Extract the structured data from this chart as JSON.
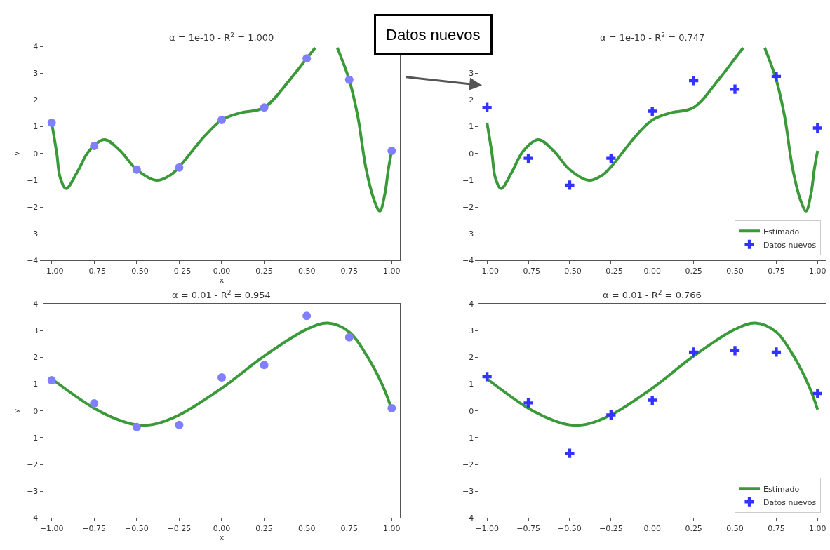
{
  "chart_data": [
    {
      "type": "line",
      "title": "α = 1e-10 - R$^{2}$ = 1.000",
      "xlabel": "x",
      "ylabel": "y",
      "xlim": [
        -1.05,
        1.05
      ],
      "ylim": [
        -4,
        4
      ],
      "xticks": [
        {
          "value": -1,
          "label": "−1.00"
        },
        {
          "value": -0.75,
          "label": "−0.75"
        },
        {
          "value": -0.5,
          "label": "−0.50"
        },
        {
          "value": -0.25,
          "label": "−0.25"
        },
        {
          "value": 0,
          "label": "0.00"
        },
        {
          "value": 0.25,
          "label": "0.25"
        },
        {
          "value": 0.5,
          "label": "0.50"
        },
        {
          "value": 0.75,
          "label": "0.75"
        },
        {
          "value": 1,
          "label": "1.00"
        }
      ],
      "yticks": [
        {
          "value": -4,
          "label": "−4"
        },
        {
          "value": -3,
          "label": "−3"
        },
        {
          "value": -2,
          "label": "−2"
        },
        {
          "value": -1,
          "label": "−1"
        },
        0,
        1,
        2,
        3,
        4
      ],
      "grid": false,
      "legend": false,
      "series": [
        {
          "color": "#3a9a3a",
          "marker": "none",
          "x": [
            -1,
            -0.97,
            -0.95,
            -0.915,
            -0.85,
            -0.78,
            -0.69,
            -0.6,
            -0.5,
            -0.383,
            -0.3,
            -0.25,
            -0.1,
            0,
            0.1,
            0.25,
            0.4,
            0.5,
            0.55,
            0.6,
            0.68,
            0.75,
            0.8,
            0.85,
            0.9,
            0.93,
            0.96,
            0.98,
            1
          ],
          "values": [
            1.15,
            0.0,
            -0.9,
            -1.31,
            -0.7,
            0.1,
            0.52,
            0.12,
            -0.6,
            -1.0,
            -0.8,
            -0.5,
            0.65,
            1.25,
            1.5,
            1.72,
            2.75,
            3.55,
            3.95,
            null,
            3.95,
            2.75,
            1.4,
            -0.6,
            -1.8,
            -2.15,
            -1.5,
            -0.6,
            0.1
          ]
        },
        {
          "type": "scatter",
          "color": "#8080ff",
          "marker": "circle",
          "x": [
            -1,
            -0.75,
            -0.5,
            -0.25,
            0,
            0.25,
            0.5,
            0.75,
            1
          ],
          "values": [
            1.15,
            0.28,
            -0.6,
            -0.52,
            1.25,
            1.72,
            3.55,
            2.75,
            0.1
          ]
        }
      ]
    },
    {
      "type": "line",
      "title": "α = 1e-10 - R$^{2}$ = 0.747",
      "xlim": [
        -1.05,
        1.05
      ],
      "ylim": [
        -4,
        4
      ],
      "xticks": [
        {
          "value": -1,
          "label": "−1.00"
        },
        {
          "value": -0.75,
          "label": "−0.75"
        },
        {
          "value": -0.5,
          "label": "−0.50"
        },
        {
          "value": -0.25,
          "label": "−0.25"
        },
        {
          "value": 0,
          "label": "0.00"
        },
        {
          "value": 0.25,
          "label": "0.25"
        },
        {
          "value": 0.5,
          "label": "0.50"
        },
        {
          "value": 0.75,
          "label": "0.75"
        },
        {
          "value": 1,
          "label": "1.00"
        }
      ],
      "yticks": [
        {
          "value": -4,
          "label": "−4"
        },
        {
          "value": -3,
          "label": "−3"
        },
        {
          "value": -2,
          "label": "−2"
        },
        {
          "value": -1,
          "label": "−1"
        },
        0,
        1,
        2,
        3,
        {
          "value": 4,
          "label": null
        }
      ],
      "legend": "bottom right",
      "annotations": [
        "Datos nuevos"
      ],
      "series": [
        {
          "name": "Estimado",
          "color": "#3a9a3a",
          "marker": "none",
          "x": [
            -1,
            -0.97,
            -0.95,
            -0.915,
            -0.85,
            -0.78,
            -0.69,
            -0.6,
            -0.5,
            -0.383,
            -0.3,
            -0.25,
            -0.1,
            0,
            0.1,
            0.25,
            0.4,
            0.5,
            0.55,
            0.6,
            0.68,
            0.75,
            0.8,
            0.85,
            0.9,
            0.93,
            0.96,
            0.98,
            1
          ],
          "values": [
            1.15,
            0.0,
            -0.9,
            -1.31,
            -0.7,
            0.1,
            0.52,
            0.12,
            -0.6,
            -1.0,
            -0.8,
            -0.5,
            0.65,
            1.25,
            1.5,
            1.72,
            2.75,
            3.55,
            3.95,
            null,
            3.95,
            2.75,
            1.4,
            -0.6,
            -1.8,
            -2.15,
            -1.5,
            -0.6,
            0.1
          ]
        },
        {
          "type": "scatter",
          "name": "Datos nuevos",
          "color": "#3333ff",
          "marker": "cross",
          "x": [
            -1,
            -0.75,
            -0.5,
            -0.25,
            0,
            0.25,
            0.5,
            0.75,
            1
          ],
          "values": [
            1.72,
            -0.18,
            -1.18,
            -0.18,
            1.58,
            2.72,
            2.4,
            2.88,
            0.95
          ]
        }
      ]
    },
    {
      "type": "line",
      "title": "α = 0.01 - R$^{2}$ = 0.954",
      "xlabel": "x",
      "ylabel": "y",
      "xlim": [
        -1.05,
        1.05
      ],
      "ylim": [
        -4,
        4
      ],
      "xticks": [
        {
          "value": -1,
          "label": "−1.00"
        },
        {
          "value": -0.75,
          "label": "−0.75"
        },
        {
          "value": -0.5,
          "label": "−0.50"
        },
        {
          "value": -0.25,
          "label": "−0.25"
        },
        {
          "value": 0,
          "label": "0.00"
        },
        {
          "value": 0.25,
          "label": "0.25"
        },
        {
          "value": 0.5,
          "label": "0.50"
        },
        {
          "value": 0.75,
          "label": "0.75"
        },
        {
          "value": 1,
          "label": "1.00"
        }
      ],
      "yticks": [
        {
          "value": -4,
          "label": "−4"
        },
        {
          "value": -3,
          "label": "−3"
        },
        {
          "value": -2,
          "label": "−2"
        },
        {
          "value": -1,
          "label": "−1"
        },
        0,
        1,
        2,
        3,
        4
      ],
      "grid": false,
      "legend": false,
      "series": [
        {
          "color": "#3a9a3a",
          "marker": "none",
          "x": [
            -1,
            -0.75,
            -0.6,
            -0.5,
            -0.4,
            -0.25,
            0,
            0.25,
            0.5,
            0.625,
            0.75,
            0.85,
            0.95,
            1
          ],
          "values": [
            1.2,
            0.1,
            -0.35,
            -0.52,
            -0.5,
            -0.15,
            0.85,
            2.05,
            3.05,
            3.28,
            2.95,
            2.1,
            0.9,
            0.05
          ]
        },
        {
          "type": "scatter",
          "color": "#8080ff",
          "marker": "circle",
          "x": [
            -1,
            -0.75,
            -0.5,
            -0.25,
            0,
            0.25,
            0.5,
            0.75,
            1
          ],
          "values": [
            1.15,
            0.28,
            -0.6,
            -0.52,
            1.25,
            1.72,
            3.55,
            2.75,
            0.1
          ]
        }
      ]
    },
    {
      "type": "line",
      "title": "α = 0.01 - R$^{2}$ = 0.766",
      "xlim": [
        -1.05,
        1.05
      ],
      "ylim": [
        -4,
        4
      ],
      "xticks": [
        {
          "value": -1,
          "label": "−1.00"
        },
        {
          "value": -0.75,
          "label": "−0.75"
        },
        {
          "value": -0.5,
          "label": "−0.50"
        },
        {
          "value": -0.25,
          "label": "−0.25"
        },
        {
          "value": 0,
          "label": "0.00"
        },
        {
          "value": 0.25,
          "label": "0.25"
        },
        {
          "value": 0.5,
          "label": "0.50"
        },
        {
          "value": 0.75,
          "label": "0.75"
        },
        {
          "value": 1,
          "label": "1.00"
        }
      ],
      "yticks": [
        {
          "value": -4,
          "label": "−4"
        },
        {
          "value": -3,
          "label": "−3"
        },
        {
          "value": -2,
          "label": "−2"
        },
        {
          "value": -1,
          "label": "−1"
        },
        0,
        1,
        2,
        3,
        4
      ],
      "grid": false,
      "legend": "bottom right",
      "series": [
        {
          "name": "Estimado",
          "color": "#3a9a3a",
          "marker": "none",
          "x": [
            -1,
            -0.75,
            -0.6,
            -0.5,
            -0.4,
            -0.25,
            0,
            0.25,
            0.5,
            0.625,
            0.75,
            0.85,
            0.95,
            1
          ],
          "values": [
            1.2,
            0.1,
            -0.35,
            -0.52,
            -0.5,
            -0.15,
            0.85,
            2.05,
            3.05,
            3.28,
            2.95,
            2.1,
            0.9,
            0.05
          ]
        },
        {
          "type": "scatter",
          "name": "Datos nuevos",
          "color": "#3333ff",
          "marker": "cross",
          "x": [
            -1,
            -0.75,
            -0.5,
            -0.25,
            0,
            0.25,
            0.5,
            0.75,
            1
          ],
          "values": [
            1.28,
            0.3,
            -1.58,
            -0.15,
            0.4,
            2.2,
            2.25,
            2.2,
            0.65
          ]
        }
      ]
    }
  ]
}
